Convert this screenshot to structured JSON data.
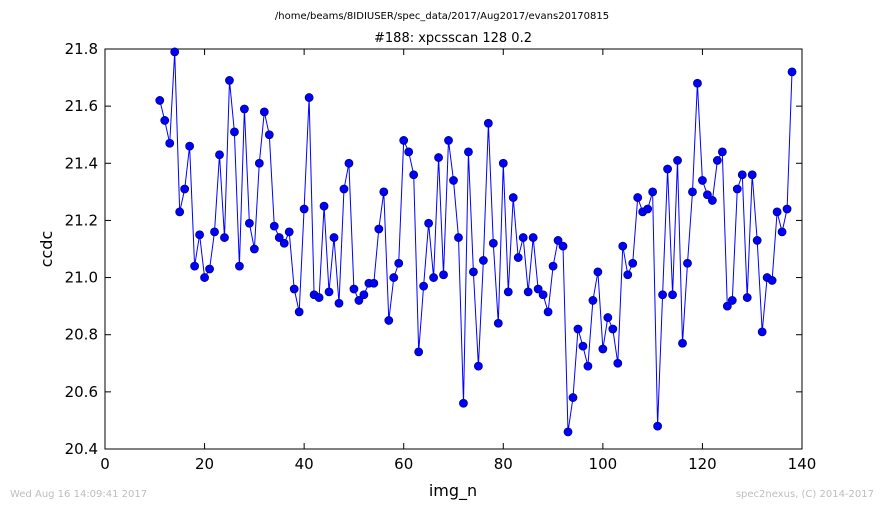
{
  "header": {
    "path": "/home/beams/8IDIUSER/spec_data/2017/Aug2017/evans20170815"
  },
  "footer": {
    "timestamp": "Wed Aug 16 14:09:41 2017",
    "credit": "spec2nexus, (C) 2014-2017"
  },
  "colors": {
    "line": "#0000ff",
    "marker_fill": "#0000ff",
    "marker_edge": "#000080"
  },
  "chart_data": {
    "type": "line",
    "title": "#188: xpcsscan 128 0.2",
    "xlabel": "img_n",
    "ylabel": "ccdc",
    "xlim": [
      0,
      140
    ],
    "ylim": [
      20.4,
      21.8
    ],
    "xticks": [
      0,
      20,
      40,
      60,
      80,
      100,
      120,
      140
    ],
    "yticks": [
      20.4,
      20.6,
      20.8,
      21.0,
      21.2,
      21.4,
      21.6,
      21.8
    ],
    "xtick_labels": [
      "0",
      "20",
      "40",
      "60",
      "80",
      "100",
      "120",
      "140"
    ],
    "ytick_labels": [
      "20.4",
      "20.6",
      "20.8",
      "21.0",
      "21.2",
      "21.4",
      "21.6",
      "21.8"
    ],
    "grid": false,
    "series": [
      {
        "x": [
          11,
          12,
          13,
          14,
          15,
          16,
          17,
          18,
          19,
          20,
          21,
          22,
          23,
          24,
          25,
          26,
          27,
          28,
          29,
          30,
          31,
          32,
          33,
          34,
          35,
          36,
          37,
          38,
          39,
          40,
          41,
          42,
          43,
          44,
          45,
          46,
          47,
          48,
          49,
          50,
          51,
          52,
          53,
          54,
          55,
          56,
          57,
          58,
          59,
          60,
          61,
          62,
          63,
          64,
          65,
          66,
          67,
          68,
          69,
          70,
          71,
          72,
          73,
          74,
          75,
          76,
          77,
          78,
          79,
          80,
          81,
          82,
          83,
          84,
          85,
          86,
          87,
          88,
          89,
          90,
          91,
          92,
          93,
          94,
          95,
          96,
          97,
          98,
          99,
          100,
          101,
          102,
          103,
          104,
          105,
          106,
          107,
          108,
          109,
          110,
          111,
          112,
          113,
          114,
          115,
          116,
          117,
          118,
          119,
          120,
          121,
          122,
          123,
          124,
          125,
          126,
          127,
          128,
          129,
          130,
          131,
          132,
          133,
          134,
          135,
          136,
          137,
          138
        ],
        "y": [
          21.62,
          21.55,
          21.47,
          21.79,
          21.23,
          21.31,
          21.46,
          21.04,
          21.15,
          21.0,
          21.03,
          21.16,
          21.43,
          21.14,
          21.69,
          21.51,
          21.04,
          21.59,
          21.19,
          21.1,
          21.4,
          21.58,
          21.5,
          21.18,
          21.14,
          21.12,
          21.16,
          20.96,
          20.88,
          21.24,
          21.63,
          20.94,
          20.93,
          21.25,
          20.95,
          21.14,
          20.91,
          21.31,
          21.4,
          20.96,
          20.92,
          20.94,
          20.98,
          20.98,
          21.17,
          21.3,
          20.85,
          21.0,
          21.05,
          21.48,
          21.44,
          21.36,
          20.74,
          20.97,
          21.19,
          21.0,
          21.42,
          21.01,
          21.48,
          21.34,
          21.14,
          20.56,
          21.44,
          21.02,
          20.69,
          21.06,
          21.54,
          21.12,
          20.84,
          21.4,
          20.95,
          21.28,
          21.07,
          21.14,
          20.95,
          21.14,
          20.96,
          20.94,
          20.88,
          21.04,
          21.13,
          21.11,
          20.46,
          20.58,
          20.82,
          20.76,
          20.69,
          20.92,
          21.02,
          20.75,
          20.86,
          20.82,
          20.7,
          21.11,
          21.01,
          21.05,
          21.28,
          21.23,
          21.24,
          21.3,
          20.48,
          20.94,
          21.38,
          20.94,
          21.41,
          20.77,
          21.05,
          21.3,
          21.68,
          21.34,
          21.29,
          21.27,
          21.41,
          21.44,
          20.9,
          20.92,
          21.31,
          21.36,
          20.93,
          21.36,
          21.13,
          20.81,
          21.0,
          20.99,
          21.23,
          21.16,
          21.24,
          21.72
        ]
      }
    ]
  }
}
